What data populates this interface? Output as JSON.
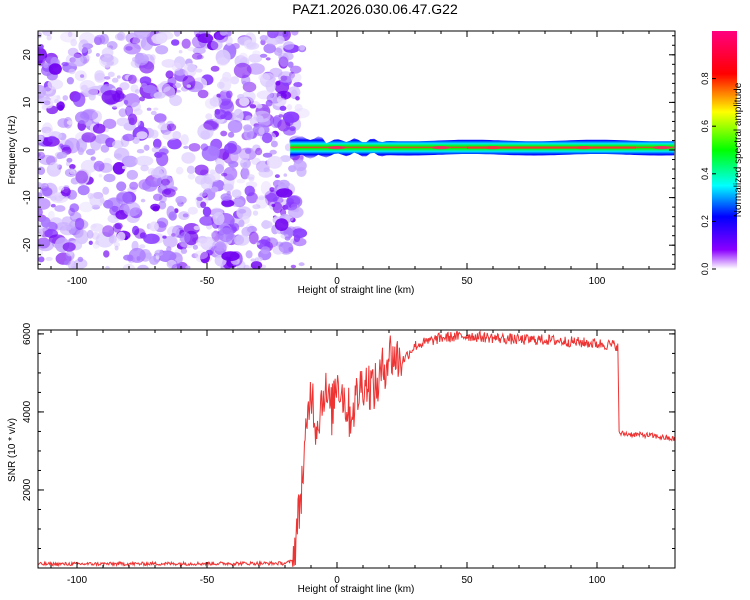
{
  "title": "PAZ1.2026.030.06.47.G22",
  "chart_data": [
    {
      "type": "heatmap",
      "title": "PAZ1.2026.030.06.47.G22",
      "xlabel": "Height of straight line (km)",
      "ylabel": "Frequency (Hz)",
      "xlim": [
        -115,
        130
      ],
      "ylim": [
        -25,
        25
      ],
      "xticks": [
        -100,
        -50,
        0,
        50,
        100
      ],
      "yticks": [
        -20,
        -10,
        0,
        10,
        20
      ],
      "colorbar": {
        "label": "Normalized spectral amplitude",
        "range": [
          0.0,
          1.0
        ],
        "ticks": [
          0.0,
          0.2,
          0.4,
          0.6,
          0.8
        ]
      },
      "regions": [
        {
          "name": "noise",
          "x_range": [
            -115,
            -18
          ],
          "f_range": [
            -25,
            25
          ],
          "amplitude": [
            0.0,
            0.15
          ]
        },
        {
          "name": "signal-line",
          "x_range": [
            -18,
            130
          ],
          "f_center": 0.5,
          "f_halfwidth": 1.5,
          "amplitude_peak": 1.0
        }
      ]
    },
    {
      "type": "line",
      "xlabel": "Height of straight line (km)",
      "ylabel": "SNR (10 * v/v)",
      "xlim": [
        -115,
        130
      ],
      "ylim": [
        0,
        6100
      ],
      "xticks": [
        -100,
        -50,
        0,
        50,
        100
      ],
      "yticks": [
        2000,
        4000,
        6000
      ],
      "color": "#ee3333",
      "series": [
        {
          "name": "SNR",
          "x": [
            -115,
            -20,
            -17,
            -15,
            -12,
            -10,
            -8,
            -5,
            -2,
            0,
            5,
            10,
            15,
            20,
            25,
            30,
            40,
            50,
            60,
            70,
            80,
            90,
            100,
            108,
            108.5,
            115,
            120,
            130
          ],
          "values": [
            100,
            120,
            180,
            1200,
            3200,
            4700,
            3600,
            4600,
            4000,
            4900,
            3900,
            4800,
            4600,
            5500,
            5300,
            5700,
            5900,
            5950,
            5900,
            5850,
            5850,
            5800,
            5750,
            5700,
            3450,
            3420,
            3400,
            3300
          ]
        }
      ]
    }
  ]
}
